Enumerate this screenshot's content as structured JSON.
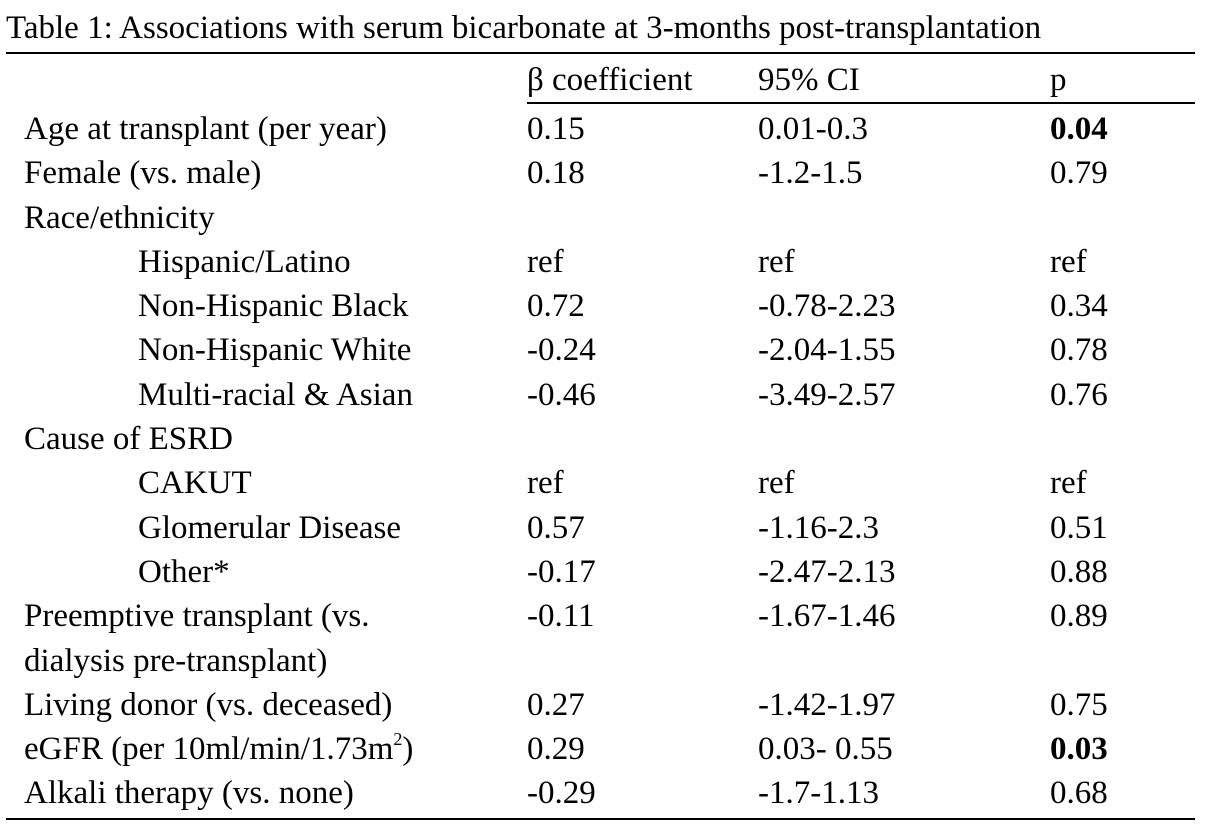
{
  "table": {
    "title": "Table 1: Associations with serum bicarbonate at 3-months post-transplantation",
    "headers": {
      "beta": "β coefficient",
      "ci": "95% CI",
      "p": "p"
    },
    "rows": [
      {
        "label": "Age at transplant (per year)",
        "beta": "0.15",
        "ci": "0.01-0.3",
        "p": "0.04",
        "p_bold": true
      },
      {
        "label": "Female (vs. male)",
        "beta": "0.18",
        "ci": "-1.2-1.5",
        "p": "0.79"
      },
      {
        "label": "Race/ethnicity",
        "beta": "",
        "ci": "",
        "p": ""
      },
      {
        "label": "Hispanic/Latino",
        "indent": true,
        "beta": "ref",
        "ci": "ref",
        "p": "ref"
      },
      {
        "label": "Non-Hispanic Black",
        "indent": true,
        "beta": "0.72",
        "ci": "-0.78-2.23",
        "p": "0.34"
      },
      {
        "label": "Non-Hispanic White",
        "indent": true,
        "beta": "-0.24",
        "ci": "-2.04-1.55",
        "p": "0.78"
      },
      {
        "label": "Multi-racial & Asian",
        "indent": true,
        "beta": "-0.46",
        "ci": "-3.49-2.57",
        "p": "0.76"
      },
      {
        "label": "Cause of ESRD",
        "beta": "",
        "ci": "",
        "p": ""
      },
      {
        "label": "CAKUT",
        "indent": true,
        "beta": "ref",
        "ci": "ref",
        "p": "ref"
      },
      {
        "label": "Glomerular Disease",
        "indent": true,
        "beta": "0.57",
        "ci": "-1.16-2.3",
        "p": "0.51"
      },
      {
        "label": "Other*",
        "indent": true,
        "beta": "-0.17",
        "ci": "-2.47-2.13",
        "p": "0.88"
      },
      {
        "label": "Preemptive transplant (vs.",
        "beta": "-0.11",
        "ci": "-1.67-1.46",
        "p": "0.89"
      },
      {
        "label": "dialysis pre-transplant)",
        "beta": "",
        "ci": "",
        "p": ""
      },
      {
        "label": "Living donor (vs. deceased)",
        "beta": "0.27",
        "ci": "-1.42-1.97",
        "p": "0.75"
      },
      {
        "label": "eGFR (per 10ml/min/1.73m",
        "label_sup": "2",
        "label_after": ")",
        "beta": "0.29",
        "ci": "0.03- 0.55",
        "p": "0.03",
        "p_bold": true
      },
      {
        "label": "Alkali therapy (vs. none)",
        "beta": "-0.29",
        "ci": "-1.7-1.13",
        "p": "0.68"
      }
    ]
  }
}
